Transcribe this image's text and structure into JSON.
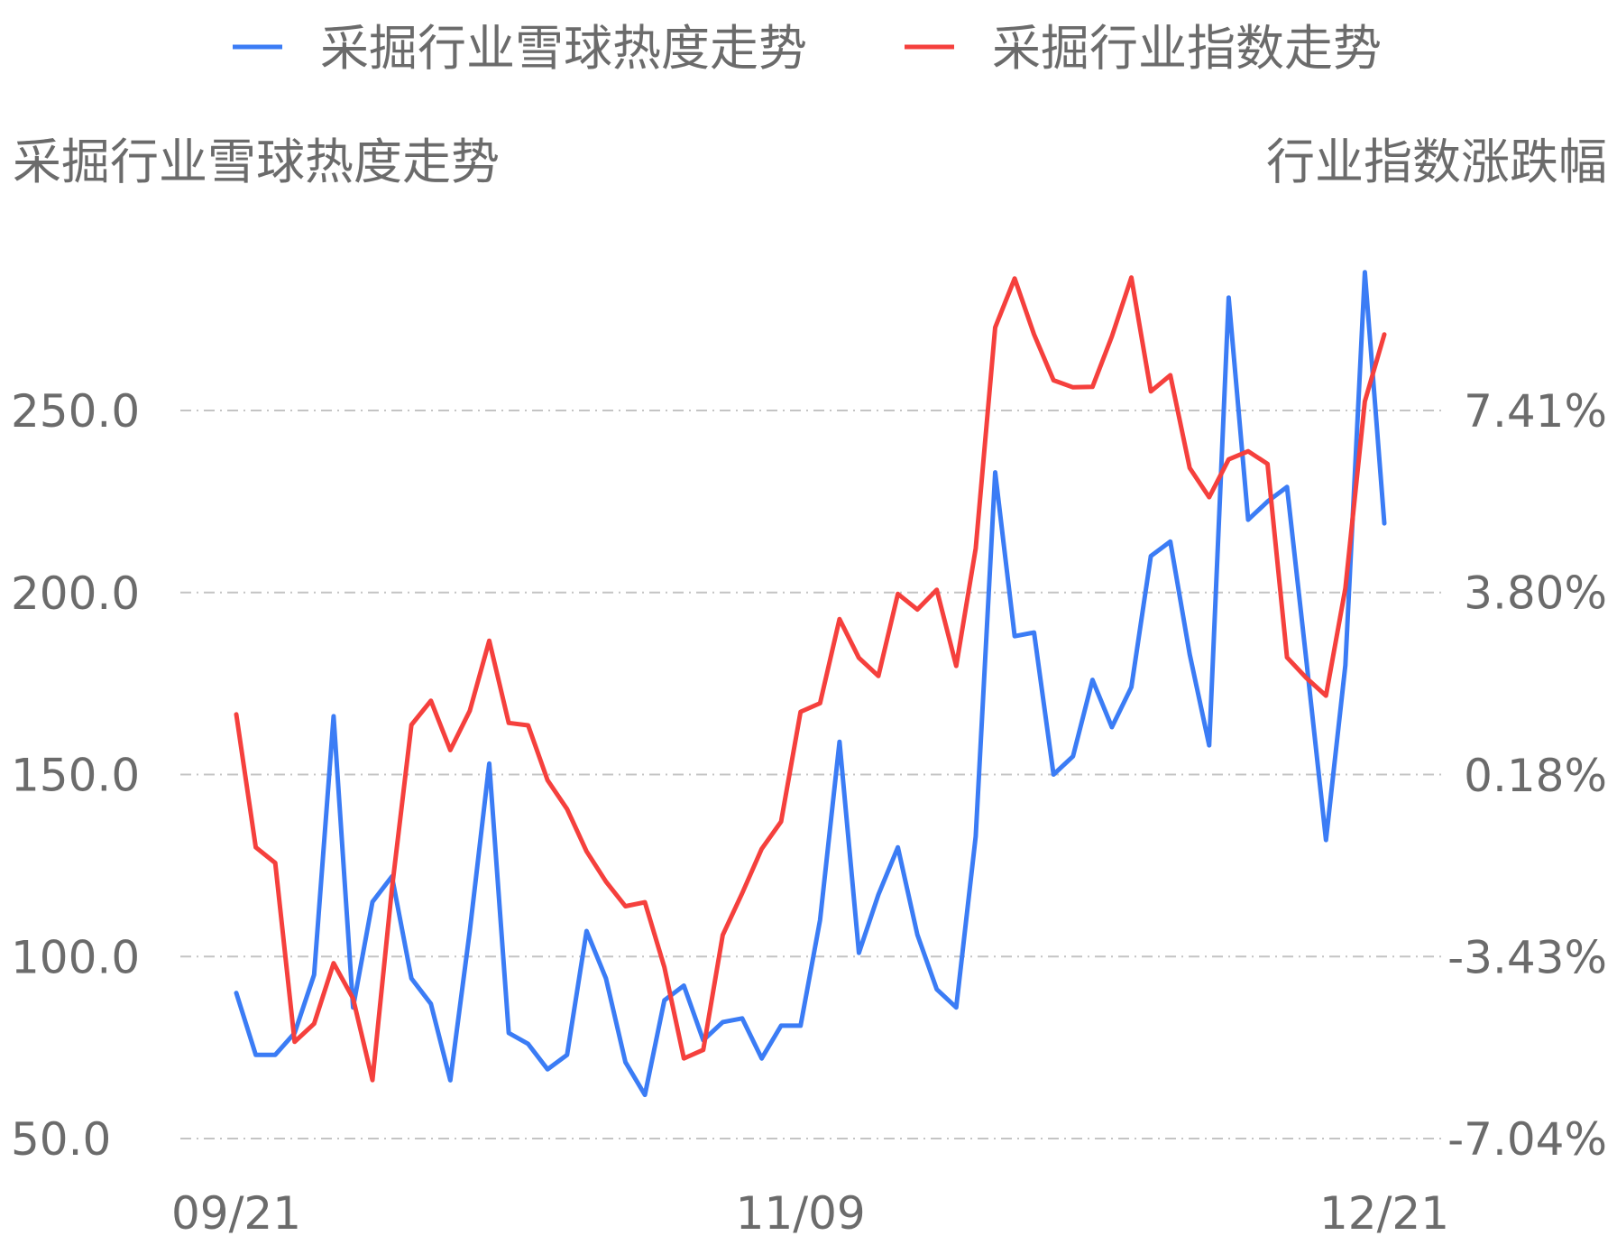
{
  "chart_data": {
    "type": "line",
    "legend": [
      {
        "name": "采掘行业雪球热度走势",
        "color": "#3b7cf5"
      },
      {
        "name": "采掘行业指数走势",
        "color": "#f5403d"
      }
    ],
    "left_axis": {
      "title": "采掘行业雪球热度走势",
      "ticks": [
        "250.0",
        "200.0",
        "150.0",
        "100.0",
        "50.0"
      ],
      "tick_values": [
        250,
        200,
        150,
        100,
        50
      ],
      "range": [
        50,
        250
      ]
    },
    "right_axis": {
      "title": "行业指数涨跌幅",
      "ticks": [
        "7.41%",
        "3.80%",
        "0.18%",
        "-3.43%",
        "-7.04%"
      ],
      "tick_values": [
        7.41,
        3.8,
        0.18,
        -3.43,
        -7.04
      ],
      "range": [
        -7.04,
        7.41
      ]
    },
    "x_ticks": [
      {
        "label": "09/21",
        "index": 0
      },
      {
        "label": "11/09",
        "index": 29
      },
      {
        "label": "12/21",
        "index": 59
      }
    ],
    "point_count": 60,
    "grid": true,
    "series": [
      {
        "name": "采掘行业雪球热度走势",
        "axis": "left",
        "color": "#3b7cf5",
        "values": [
          90,
          73,
          73,
          79,
          95,
          166,
          86,
          115,
          122,
          94,
          87,
          66,
          107,
          153,
          79,
          76,
          69,
          73,
          107,
          94,
          71,
          62,
          88,
          92,
          77,
          82,
          83,
          72,
          81,
          81,
          110,
          159,
          101,
          117,
          130,
          106,
          91,
          86,
          133,
          233,
          188,
          189,
          150,
          155,
          176,
          163,
          174,
          210,
          214,
          183,
          158,
          281,
          220,
          225,
          229,
          181,
          132,
          180,
          288,
          219
        ]
      },
      {
        "name": "采掘行业指数走势",
        "axis": "right",
        "color": "#f5403d",
        "values": [
          1.38,
          -1.26,
          -1.57,
          -5.12,
          -4.76,
          -3.56,
          -4.26,
          -5.88,
          -2.08,
          1.17,
          1.65,
          0.67,
          1.45,
          2.84,
          1.21,
          1.16,
          0.07,
          -0.5,
          -1.34,
          -1.94,
          -2.43,
          -2.35,
          -3.64,
          -5.45,
          -5.28,
          -3.0,
          -2.17,
          -1.29,
          -0.75,
          1.43,
          1.6,
          3.27,
          2.5,
          2.14,
          3.77,
          3.46,
          3.85,
          2.34,
          4.67,
          9.06,
          10.03,
          8.92,
          8.01,
          7.87,
          7.88,
          8.88,
          10.05,
          7.79,
          8.11,
          6.27,
          5.69,
          6.44,
          6.6,
          6.35,
          2.51,
          2.1,
          1.75,
          3.88,
          7.59,
          8.92
        ]
      }
    ]
  }
}
